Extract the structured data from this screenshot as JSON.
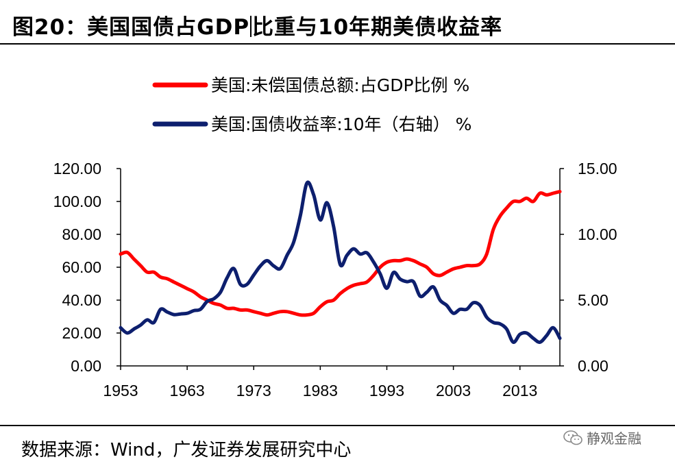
{
  "header": {
    "title_part1": "图20：美国国债占GDP",
    "title_part2": "比重与10年期美债收益率"
  },
  "source": "数据来源：Wind，广发证券发展研究中心",
  "watermark": "静观金融",
  "chart_data": {
    "type": "line",
    "title": "",
    "xlabel": "",
    "ylabel_left": "",
    "ylabel_right": "",
    "x_ticks": [
      "1953",
      "1963",
      "1973",
      "1983",
      "1993",
      "2003",
      "2013"
    ],
    "xlim": [
      1953,
      2019
    ],
    "ylim_left": [
      0,
      120
    ],
    "ylim_right": [
      0,
      15
    ],
    "yticks_left": [
      "0.00",
      "20.00",
      "40.00",
      "60.00",
      "80.00",
      "100.00",
      "120.00"
    ],
    "yticks_right": [
      "0.00",
      "5.00",
      "10.00",
      "15.00"
    ],
    "grid": false,
    "legend_position": "top-center",
    "series": [
      {
        "name": "美国:未偿国债总额:占GDP比例 %",
        "axis": "left",
        "color": "#ff0000",
        "x": [
          1953,
          1954,
          1955,
          1956,
          1957,
          1958,
          1959,
          1960,
          1961,
          1962,
          1963,
          1964,
          1965,
          1966,
          1967,
          1968,
          1969,
          1970,
          1971,
          1972,
          1973,
          1974,
          1975,
          1976,
          1977,
          1978,
          1979,
          1980,
          1981,
          1982,
          1983,
          1984,
          1985,
          1986,
          1987,
          1988,
          1989,
          1990,
          1991,
          1992,
          1993,
          1994,
          1995,
          1996,
          1997,
          1998,
          1999,
          2000,
          2001,
          2002,
          2003,
          2004,
          2005,
          2006,
          2007,
          2008,
          2009,
          2010,
          2011,
          2012,
          2013,
          2014,
          2015,
          2016,
          2017,
          2018,
          2019
        ],
        "values": [
          68,
          69,
          65,
          61,
          57,
          57,
          54,
          53,
          51,
          49,
          47,
          45,
          42,
          40,
          38,
          37,
          35,
          35,
          34,
          34,
          33,
          32,
          31,
          32,
          33,
          33,
          32,
          31,
          31,
          32,
          36,
          39,
          40,
          44,
          47,
          49,
          50,
          51,
          55,
          60,
          63,
          64,
          64,
          65,
          64,
          62,
          60,
          56,
          55,
          57,
          59,
          60,
          61,
          61,
          62,
          68,
          83,
          91,
          96,
          100,
          100,
          102,
          100,
          105,
          104,
          105,
          106
        ]
      },
      {
        "name": "美国:国债收益率:10年（右轴） %",
        "axis": "right",
        "color": "#0d1f6e",
        "x": [
          1953,
          1954,
          1955,
          1956,
          1957,
          1958,
          1959,
          1960,
          1961,
          1962,
          1963,
          1964,
          1965,
          1966,
          1967,
          1968,
          1969,
          1970,
          1971,
          1972,
          1973,
          1974,
          1975,
          1976,
          1977,
          1978,
          1979,
          1980,
          1981,
          1982,
          1983,
          1984,
          1985,
          1986,
          1987,
          1988,
          1989,
          1990,
          1991,
          1992,
          1993,
          1994,
          1995,
          1996,
          1997,
          1998,
          1999,
          2000,
          2001,
          2002,
          2003,
          2004,
          2005,
          2006,
          2007,
          2008,
          2009,
          2010,
          2011,
          2012,
          2013,
          2014,
          2015,
          2016,
          2017,
          2018,
          2019
        ],
        "values": [
          2.9,
          2.5,
          2.8,
          3.1,
          3.5,
          3.3,
          4.3,
          4.1,
          3.9,
          3.95,
          4.0,
          4.2,
          4.3,
          4.9,
          5.1,
          5.6,
          6.7,
          7.4,
          6.2,
          6.2,
          6.9,
          7.6,
          8.0,
          7.6,
          7.4,
          8.4,
          9.4,
          11.4,
          13.9,
          13.0,
          11.1,
          12.4,
          10.6,
          7.7,
          8.4,
          8.9,
          8.5,
          8.6,
          7.9,
          7.0,
          5.9,
          7.1,
          6.6,
          6.4,
          6.4,
          5.3,
          5.6,
          6.0,
          5.0,
          4.6,
          4.0,
          4.3,
          4.3,
          4.8,
          4.6,
          3.7,
          3.3,
          3.2,
          2.8,
          1.8,
          2.4,
          2.5,
          2.1,
          1.8,
          2.3,
          2.9,
          2.1
        ]
      }
    ]
  }
}
